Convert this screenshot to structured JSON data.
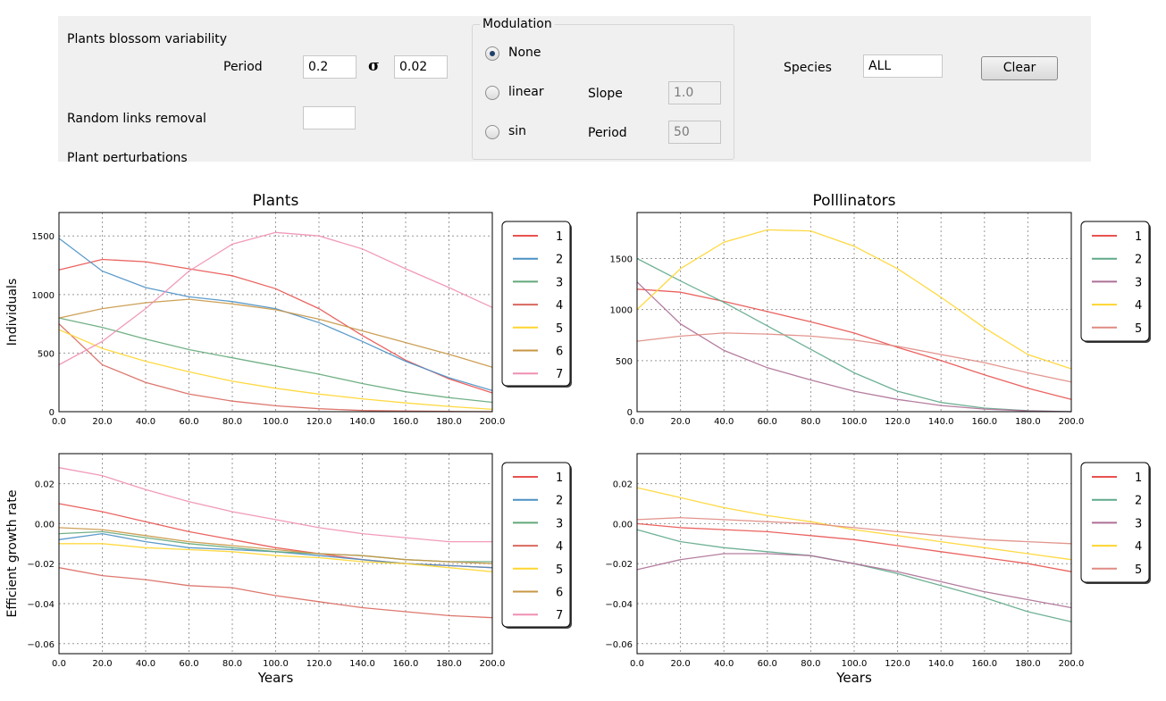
{
  "controls": {
    "blossom_title": "Plants blossom variability",
    "period_label": "Period",
    "period_value": "0.2",
    "sigma_symbol": "σ",
    "sigma_value": "0.02",
    "random_links_label": "Random links removal",
    "random_links_value": "",
    "plant_perturbations_label": "Plant perturbations",
    "modulation": {
      "title": "Modulation",
      "options": [
        "None",
        "linear",
        "sin"
      ],
      "selected": "None",
      "slope_label": "Slope",
      "slope_value": "1.0",
      "period_label": "Period",
      "period_value": "50"
    },
    "species_label": "Species",
    "species_value": "ALL",
    "clear_label": "Clear"
  },
  "colors": [
    "#e8524f",
    "#4a90c4",
    "#62a879",
    "#d9685e",
    "#ffd52e",
    "#c89645",
    "#f08fb2"
  ],
  "pollinator_colors": [
    "#e8524f",
    "#5fa98a",
    "#ad6f96",
    "#ffd52e",
    "#df8a82"
  ],
  "chart_data": [
    {
      "type": "line",
      "title": "Plants",
      "xlabel": "",
      "ylabel": "Individuals",
      "xlim": [
        0,
        200
      ],
      "ylim": [
        0,
        1700
      ],
      "x_ticks": [
        "0.0",
        "20.0",
        "40.0",
        "60.0",
        "80.0",
        "100.0",
        "120.0",
        "140.0",
        "160.0",
        "180.0",
        "200.0"
      ],
      "y_ticks": [
        {
          "v": 0,
          "t": "0"
        },
        {
          "v": 500,
          "t": "500"
        },
        {
          "v": 1000,
          "t": "1000"
        },
        {
          "v": 1500,
          "t": "1500"
        }
      ],
      "legend_position": "outside-right",
      "x": [
        0,
        20,
        40,
        60,
        80,
        100,
        120,
        140,
        160,
        180,
        200
      ],
      "series": [
        {
          "name": "1",
          "values": [
            1210,
            1300,
            1280,
            1220,
            1160,
            1050,
            880,
            650,
            440,
            280,
            160
          ]
        },
        {
          "name": "2",
          "values": [
            1480,
            1200,
            1060,
            980,
            940,
            880,
            760,
            600,
            430,
            290,
            180
          ]
        },
        {
          "name": "3",
          "values": [
            800,
            720,
            620,
            530,
            460,
            390,
            320,
            240,
            170,
            120,
            80
          ]
        },
        {
          "name": "4",
          "values": [
            750,
            400,
            250,
            150,
            90,
            50,
            25,
            10,
            5,
            2,
            0
          ]
        },
        {
          "name": "5",
          "values": [
            700,
            540,
            430,
            340,
            260,
            200,
            150,
            110,
            75,
            45,
            20
          ]
        },
        {
          "name": "6",
          "values": [
            800,
            880,
            930,
            960,
            920,
            870,
            790,
            690,
            590,
            490,
            380
          ]
        },
        {
          "name": "7",
          "values": [
            400,
            600,
            880,
            1200,
            1430,
            1530,
            1500,
            1390,
            1220,
            1060,
            890
          ]
        }
      ]
    },
    {
      "type": "line",
      "title": "Polllinators",
      "xlabel": "",
      "ylabel": "",
      "xlim": [
        0,
        200
      ],
      "ylim": [
        0,
        1950
      ],
      "x_ticks": [
        "0.0",
        "20.0",
        "40.0",
        "60.0",
        "80.0",
        "100.0",
        "120.0",
        "140.0",
        "160.0",
        "180.0",
        "200.0"
      ],
      "y_ticks": [
        {
          "v": 0,
          "t": "0"
        },
        {
          "v": 500,
          "t": "500"
        },
        {
          "v": 1000,
          "t": "1000"
        },
        {
          "v": 1500,
          "t": "1500"
        }
      ],
      "legend_position": "outside-right",
      "x": [
        0,
        20,
        40,
        60,
        80,
        100,
        120,
        140,
        160,
        180,
        200
      ],
      "series": [
        {
          "name": "1",
          "values": [
            1200,
            1170,
            1080,
            980,
            880,
            770,
            630,
            500,
            360,
            230,
            120
          ]
        },
        {
          "name": "2",
          "values": [
            1500,
            1280,
            1070,
            840,
            610,
            380,
            200,
            90,
            35,
            10,
            0
          ]
        },
        {
          "name": "3",
          "values": [
            1270,
            860,
            600,
            430,
            310,
            200,
            120,
            60,
            25,
            8,
            0
          ]
        },
        {
          "name": "4",
          "values": [
            1000,
            1400,
            1660,
            1780,
            1770,
            1620,
            1400,
            1120,
            820,
            560,
            420
          ]
        },
        {
          "name": "5",
          "values": [
            690,
            740,
            770,
            760,
            740,
            700,
            640,
            560,
            480,
            380,
            290
          ]
        }
      ]
    },
    {
      "type": "line",
      "title": "",
      "xlabel": "Years",
      "ylabel": "Efficient growth rate",
      "xlim": [
        0,
        200
      ],
      "ylim": [
        -0.065,
        0.035
      ],
      "x_ticks": [
        "0.0",
        "20.0",
        "40.0",
        "60.0",
        "80.0",
        "100.0",
        "120.0",
        "140.0",
        "160.0",
        "180.0",
        "200.0"
      ],
      "y_ticks": [
        {
          "v": 0.02,
          "t": "0.02"
        },
        {
          "v": 0,
          "t": "0.00"
        },
        {
          "v": -0.02,
          "t": "−0.02"
        },
        {
          "v": -0.04,
          "t": "−0.04"
        },
        {
          "v": -0.06,
          "t": "−0.06"
        }
      ],
      "legend_position": "outside-right",
      "x": [
        0,
        20,
        40,
        60,
        80,
        100,
        120,
        140,
        160,
        180,
        200
      ],
      "series": [
        {
          "name": "1",
          "values": [
            0.01,
            0.006,
            0.001,
            -0.004,
            -0.008,
            -0.012,
            -0.015,
            -0.018,
            -0.02,
            -0.021,
            -0.022
          ]
        },
        {
          "name": "2",
          "values": [
            -0.008,
            -0.005,
            -0.009,
            -0.012,
            -0.013,
            -0.014,
            -0.016,
            -0.018,
            -0.02,
            -0.021,
            -0.022
          ]
        },
        {
          "name": "3",
          "values": [
            -0.005,
            -0.004,
            -0.007,
            -0.01,
            -0.012,
            -0.014,
            -0.015,
            -0.016,
            -0.018,
            -0.019,
            -0.019
          ]
        },
        {
          "name": "4",
          "values": [
            -0.022,
            -0.026,
            -0.028,
            -0.031,
            -0.032,
            -0.036,
            -0.039,
            -0.042,
            -0.044,
            -0.046,
            -0.047
          ]
        },
        {
          "name": "5",
          "values": [
            -0.01,
            -0.01,
            -0.012,
            -0.013,
            -0.014,
            -0.016,
            -0.017,
            -0.019,
            -0.02,
            -0.022,
            -0.024
          ]
        },
        {
          "name": "6",
          "values": [
            -0.002,
            -0.003,
            -0.006,
            -0.009,
            -0.011,
            -0.013,
            -0.015,
            -0.016,
            -0.018,
            -0.019,
            -0.02
          ]
        },
        {
          "name": "7",
          "values": [
            0.028,
            0.024,
            0.017,
            0.011,
            0.006,
            0.002,
            -0.002,
            -0.005,
            -0.007,
            -0.009,
            -0.009
          ]
        }
      ]
    },
    {
      "type": "line",
      "title": "",
      "xlabel": "Years",
      "ylabel": "",
      "xlim": [
        0,
        200
      ],
      "ylim": [
        -0.065,
        0.035
      ],
      "x_ticks": [
        "0.0",
        "20.0",
        "40.0",
        "60.0",
        "80.0",
        "100.0",
        "120.0",
        "140.0",
        "160.0",
        "180.0",
        "200.0"
      ],
      "y_ticks": [
        {
          "v": 0.02,
          "t": "0.02"
        },
        {
          "v": 0,
          "t": "0.00"
        },
        {
          "v": -0.02,
          "t": "−0.02"
        },
        {
          "v": -0.04,
          "t": "−0.04"
        },
        {
          "v": -0.06,
          "t": "−0.06"
        }
      ],
      "legend_position": "outside-right",
      "x": [
        0,
        20,
        40,
        60,
        80,
        100,
        120,
        140,
        160,
        180,
        200
      ],
      "series": [
        {
          "name": "1",
          "values": [
            0.0,
            -0.002,
            -0.003,
            -0.004,
            -0.006,
            -0.008,
            -0.011,
            -0.014,
            -0.017,
            -0.02,
            -0.024
          ]
        },
        {
          "name": "2",
          "values": [
            -0.003,
            -0.009,
            -0.012,
            -0.014,
            -0.016,
            -0.02,
            -0.025,
            -0.031,
            -0.037,
            -0.044,
            -0.049
          ]
        },
        {
          "name": "3",
          "values": [
            -0.023,
            -0.018,
            -0.015,
            -0.015,
            -0.016,
            -0.02,
            -0.024,
            -0.029,
            -0.034,
            -0.038,
            -0.042
          ]
        },
        {
          "name": "4",
          "values": [
            0.018,
            0.013,
            0.008,
            0.004,
            0.001,
            -0.003,
            -0.006,
            -0.009,
            -0.012,
            -0.015,
            -0.018
          ]
        },
        {
          "name": "5",
          "values": [
            0.002,
            0.003,
            0.002,
            0.001,
            0.0,
            -0.002,
            -0.004,
            -0.006,
            -0.008,
            -0.009,
            -0.01
          ]
        }
      ]
    }
  ]
}
